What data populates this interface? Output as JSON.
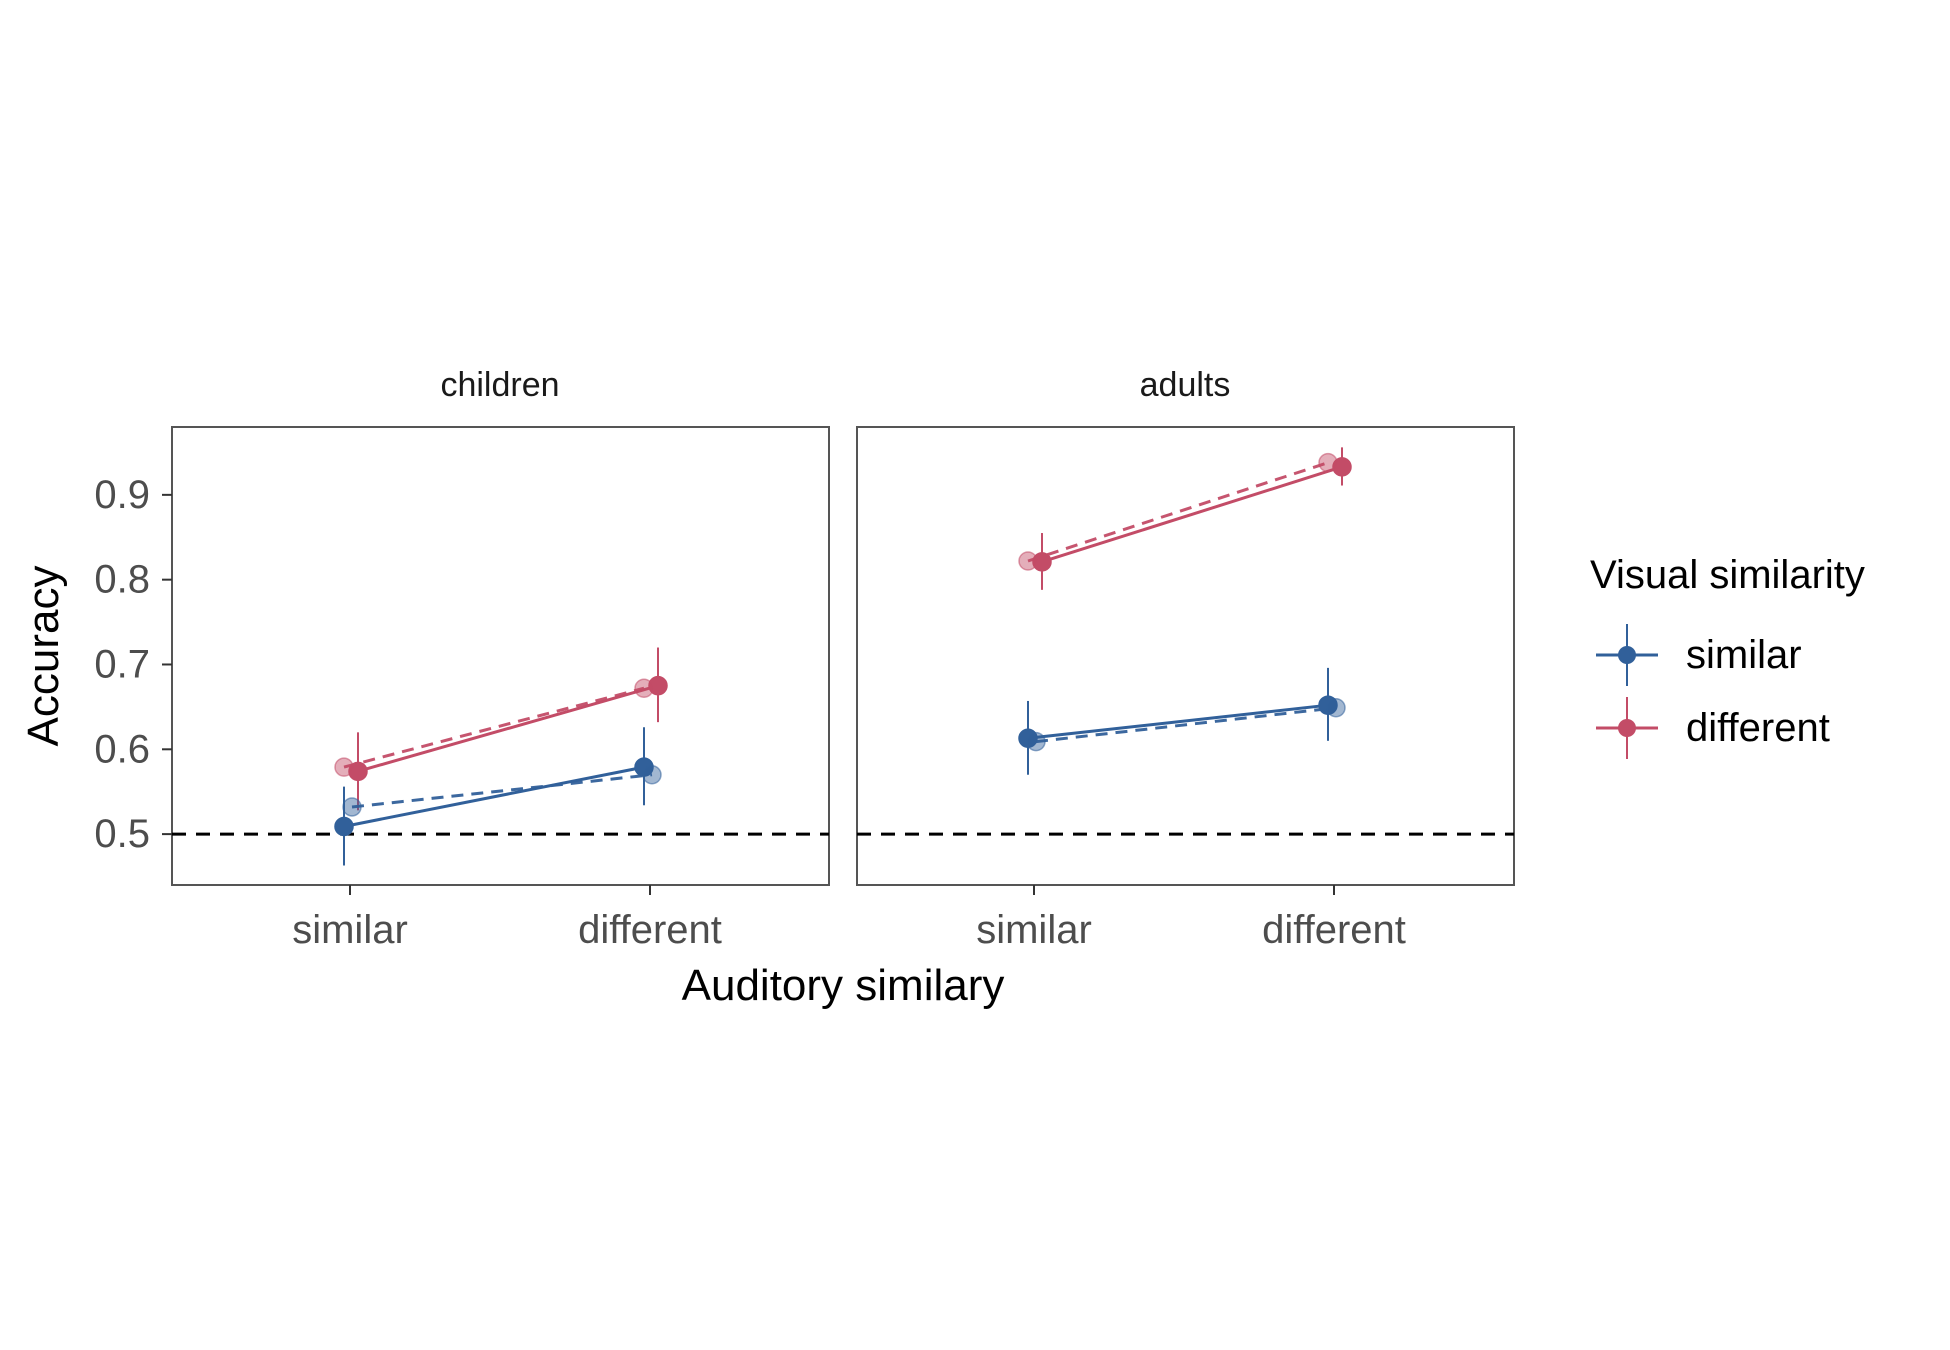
{
  "chart_data": {
    "type": "line",
    "xlabel": "Auditory similary",
    "ylabel": "Accuracy",
    "categories": [
      "similar",
      "different"
    ],
    "ylim": [
      0.44,
      0.98
    ],
    "yticks": [
      0.5,
      0.6,
      0.7,
      0.8,
      0.9
    ],
    "reference_line": 0.5,
    "grid": false,
    "legend": {
      "title": "Visual similarity",
      "placement": "right",
      "entries": [
        {
          "label": "similar",
          "color": "#31609a"
        },
        {
          "label": "different",
          "color": "#c34c67"
        }
      ]
    },
    "panels": [
      {
        "title": "children",
        "series": [
          {
            "name": "similar",
            "kind": "observed",
            "color": "#31609a",
            "values": [
              0.509,
              0.579
            ],
            "ci_low": [
              0.463,
              0.534
            ],
            "ci_high": [
              0.556,
              0.626
            ]
          },
          {
            "name": "different",
            "kind": "observed",
            "color": "#c34c67",
            "values": [
              0.574,
              0.675
            ],
            "ci_low": [
              0.528,
              0.632
            ],
            "ci_high": [
              0.62,
              0.72
            ]
          },
          {
            "name": "similar",
            "kind": "model",
            "color": "#31609a",
            "values": [
              0.532,
              0.57
            ]
          },
          {
            "name": "different",
            "kind": "model",
            "color": "#c34c67",
            "values": [
              0.579,
              0.672
            ]
          }
        ]
      },
      {
        "title": "adults",
        "series": [
          {
            "name": "similar",
            "kind": "observed",
            "color": "#31609a",
            "values": [
              0.613,
              0.652
            ],
            "ci_low": [
              0.57,
              0.61
            ],
            "ci_high": [
              0.657,
              0.696
            ]
          },
          {
            "name": "different",
            "kind": "observed",
            "color": "#c34c67",
            "values": [
              0.821,
              0.933
            ],
            "ci_low": [
              0.788,
              0.911
            ],
            "ci_high": [
              0.855,
              0.956
            ]
          },
          {
            "name": "similar",
            "kind": "model",
            "color": "#31609a",
            "values": [
              0.609,
              0.649
            ]
          },
          {
            "name": "different",
            "kind": "model",
            "color": "#c34c67",
            "values": [
              0.822,
              0.938
            ]
          }
        ]
      }
    ]
  }
}
